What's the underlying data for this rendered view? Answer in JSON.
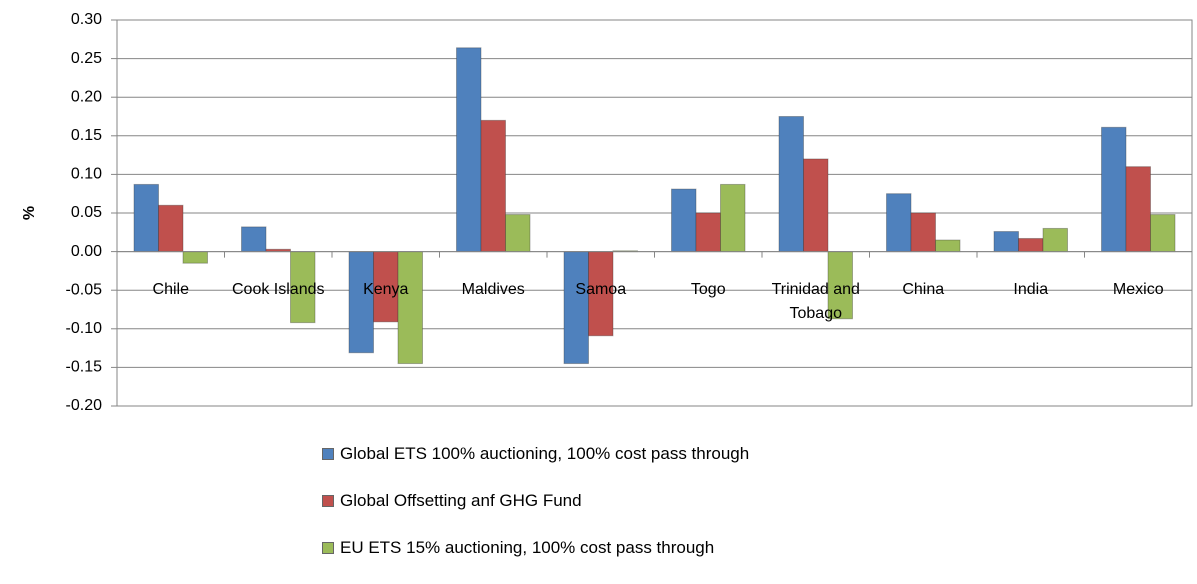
{
  "chart_data": {
    "type": "bar",
    "ylabel": "%",
    "categories": [
      "Chile",
      "Cook Islands",
      "Kenya",
      "Maldives",
      "Samoa",
      "Togo",
      "Trinidad and Tobago",
      "China",
      "India",
      "Mexico"
    ],
    "series": [
      {
        "name": "Global ETS 100% auctioning, 100% cost pass through",
        "color": "#4f81bd",
        "values": [
          0.087,
          0.032,
          -0.131,
          0.264,
          -0.145,
          0.081,
          0.175,
          0.075,
          0.026,
          0.161
        ]
      },
      {
        "name": "Global Offsetting anf GHG Fund",
        "color": "#c0504d",
        "values": [
          0.06,
          0.003,
          -0.091,
          0.17,
          -0.109,
          0.05,
          0.12,
          0.05,
          0.017,
          0.11
        ]
      },
      {
        "name": "EU ETS 15% auctioning, 100% cost pass through",
        "color": "#9bbb59",
        "values": [
          -0.015,
          -0.092,
          -0.145,
          0.048,
          0.001,
          0.087,
          -0.087,
          0.015,
          0.03,
          0.048
        ]
      }
    ],
    "ylim": [
      -0.2,
      0.3
    ],
    "yticks": [
      {
        "value": -0.2,
        "label": "-0.20"
      },
      -0.15,
      {
        "value": -0.1,
        "label": "-0.10"
      },
      -0.05,
      {
        "value": 0,
        "label": "0.00"
      },
      0.05,
      {
        "value": 0.1,
        "label": "0.10"
      },
      0.15,
      {
        "value": 0.2,
        "label": "0.20"
      },
      0.25,
      {
        "value": 0.3,
        "label": "0.30"
      }
    ],
    "grid": true
  }
}
